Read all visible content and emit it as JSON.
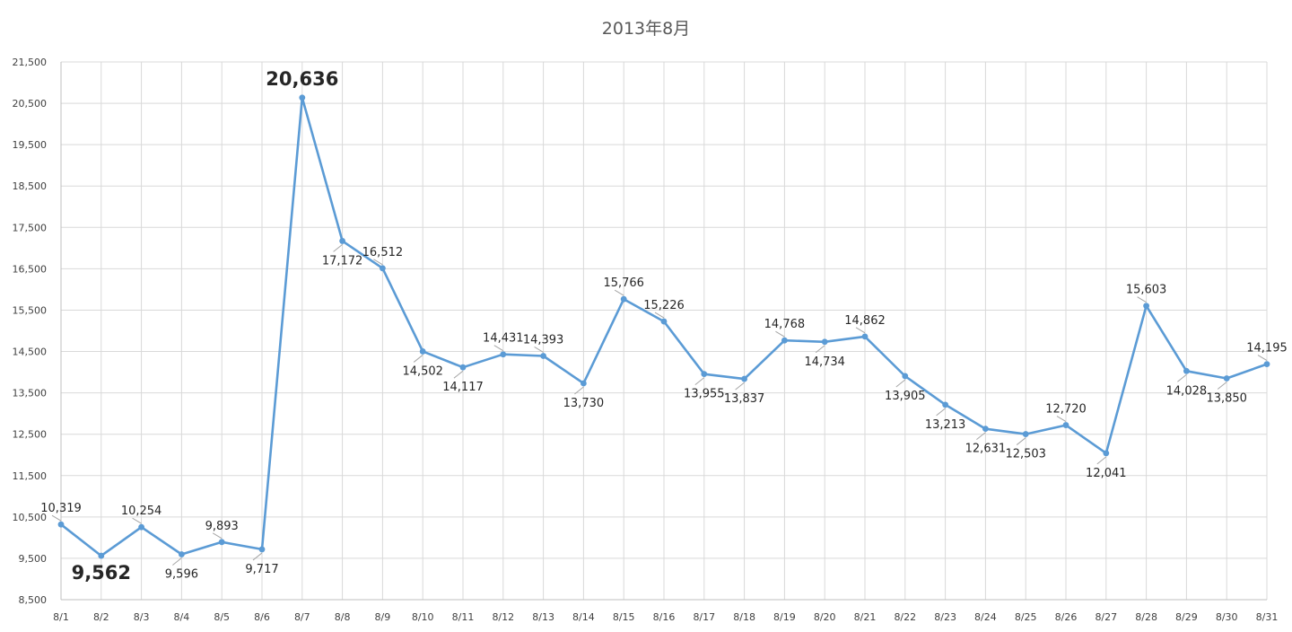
{
  "chart_data": {
    "type": "line",
    "title": "2013年8月",
    "xlabel": "",
    "ylabel": "",
    "ylim": [
      8500,
      21500
    ],
    "y_ticks": [
      8500,
      9500,
      10500,
      11500,
      12500,
      13500,
      14500,
      15500,
      16500,
      17500,
      18500,
      19500,
      20500,
      21500
    ],
    "y_tick_labels": [
      "8,500",
      "9,500",
      "10,500",
      "11,500",
      "12,500",
      "13,500",
      "14,500",
      "15,500",
      "16,500",
      "17,500",
      "18,500",
      "19,500",
      "20,500",
      "21,500"
    ],
    "grid": true,
    "legend": "none",
    "categories": [
      "8/1",
      "8/2",
      "8/3",
      "8/4",
      "8/5",
      "8/6",
      "8/7",
      "8/8",
      "8/9",
      "8/10",
      "8/11",
      "8/12",
      "8/13",
      "8/14",
      "8/15",
      "8/16",
      "8/17",
      "8/18",
      "8/19",
      "8/20",
      "8/21",
      "8/22",
      "8/23",
      "8/24",
      "8/25",
      "8/26",
      "8/27",
      "8/28",
      "8/29",
      "8/30",
      "8/31"
    ],
    "series": [
      {
        "values": [
          10319,
          9562,
          10254,
          9596,
          9893,
          9717,
          20636,
          17172,
          16512,
          14502,
          14117,
          14431,
          14393,
          13730,
          15766,
          15226,
          13955,
          13837,
          14768,
          14734,
          14862,
          13905,
          13213,
          12631,
          12503,
          12720,
          12041,
          15603,
          14028,
          13850,
          14195
        ],
        "data_labels": [
          "10,319",
          "9,562",
          "10,254",
          "9,596",
          "9,893",
          "9,717",
          "20,636",
          "17,172",
          "16,512",
          "14,502",
          "14,117",
          "14,431",
          "14,393",
          "13,730",
          "15,766",
          "15,226",
          "13,955",
          "13,837",
          "14,768",
          "14,734",
          "14,862",
          "13,905",
          "13,213",
          "12,631",
          "12,503",
          "12,720",
          "12,041",
          "15,603",
          "14,028",
          "13,850",
          "14,195"
        ]
      }
    ],
    "highlight": {
      "max_index": 6,
      "min_index": 1
    },
    "colors": {
      "series": "#5b9bd5",
      "max_label": "#c00000",
      "min_label": "#7030a0"
    }
  }
}
